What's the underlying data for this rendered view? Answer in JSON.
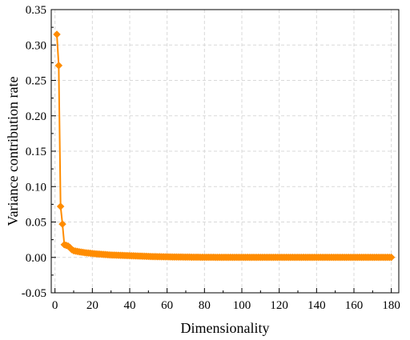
{
  "chart_data": {
    "type": "line",
    "title": "",
    "xlabel": "Dimensionality",
    "ylabel": "Variance contribution rate",
    "xlim": [
      -2,
      184
    ],
    "ylim": [
      -0.05,
      0.35
    ],
    "x_ticks": [
      0,
      20,
      40,
      60,
      80,
      100,
      120,
      140,
      160,
      180
    ],
    "x_tick_labels": [
      "0",
      "20",
      "40",
      "60",
      "80",
      "100",
      "120",
      "140",
      "160",
      "180"
    ],
    "y_ticks": [
      -0.05,
      0,
      0.05,
      0.1,
      0.15,
      0.2,
      0.25,
      0.3,
      0.35
    ],
    "y_tick_labels": [
      "-0.05",
      "0.00",
      "0.05",
      "0.10",
      "0.15",
      "0.20",
      "0.25",
      "0.30",
      "0.35"
    ],
    "grid": true,
    "legend": false,
    "marker": "diamond",
    "color": "#ff8c00",
    "series": [
      {
        "x": [
          1,
          2,
          3,
          4,
          5,
          6,
          7,
          8,
          9,
          10,
          11,
          12,
          13,
          14,
          15,
          16,
          17,
          18,
          19,
          20,
          21,
          22,
          23,
          24,
          25,
          26,
          27,
          28,
          29,
          30,
          31,
          32,
          33,
          34,
          35,
          36,
          37,
          38,
          39,
          40,
          41,
          42,
          43,
          44,
          45,
          46,
          47,
          48,
          49,
          50,
          51,
          52,
          53,
          54,
          55,
          56,
          57,
          58,
          59,
          60,
          61,
          62,
          63,
          64,
          65,
          66,
          67,
          68,
          69,
          70,
          71,
          72,
          73,
          74,
          75,
          76,
          77,
          78,
          79,
          80,
          81,
          82,
          83,
          84,
          85,
          86,
          87,
          88,
          89,
          90,
          91,
          92,
          93,
          94,
          95,
          96,
          97,
          98,
          99,
          100,
          101,
          102,
          103,
          104,
          105,
          106,
          107,
          108,
          109,
          110,
          111,
          112,
          113,
          114,
          115,
          116,
          117,
          118,
          119,
          120,
          121,
          122,
          123,
          124,
          125,
          126,
          127,
          128,
          129,
          130,
          131,
          132,
          133,
          134,
          135,
          136,
          137,
          138,
          139,
          140,
          141,
          142,
          143,
          144,
          145,
          146,
          147,
          148,
          149,
          150,
          151,
          152,
          153,
          154,
          155,
          156,
          157,
          158,
          159,
          160,
          161,
          162,
          163,
          164,
          165,
          166,
          167,
          168,
          169,
          170,
          171,
          172,
          173,
          174,
          175,
          176,
          177,
          178,
          179,
          180
        ],
        "values": [
          0.315,
          0.271,
          0.072,
          0.047,
          0.018,
          0.017,
          0.016,
          0.014,
          0.011,
          0.0095,
          0.0089,
          0.0084,
          0.0079,
          0.0075,
          0.0071,
          0.0067,
          0.0064,
          0.0061,
          0.0058,
          0.0055,
          0.0052,
          0.005,
          0.0048,
          0.0046,
          0.0044,
          0.0042,
          0.004,
          0.0038,
          0.0036,
          0.0034,
          0.0033,
          0.0032,
          0.0031,
          0.003,
          0.0029,
          0.0028,
          0.0027,
          0.0026,
          0.0025,
          0.0024,
          0.0023,
          0.0022,
          0.0021,
          0.002,
          0.0019,
          0.0018,
          0.0017,
          0.0016,
          0.0015,
          0.0014,
          0.0013,
          0.0012,
          0.0011,
          0.0011,
          0.001,
          0.001,
          0.0009,
          0.0009,
          0.0008,
          0.0008,
          0.0007,
          0.0007,
          0.0006,
          0.0006,
          0.0006,
          0.0005,
          0.0005,
          0.0005,
          0.0004,
          0.0004,
          0.0004,
          0.0004,
          0.0003,
          0.0003,
          0.0003,
          0.0003,
          0.0003,
          0.0002,
          0.0002,
          0.0002,
          0.0002,
          0.0002,
          0.0002,
          0.0002,
          0.0002,
          0.0001,
          0.0001,
          0.0001,
          0.0001,
          0.0001,
          0.0001,
          0.0001,
          0.0001,
          0.0001,
          0.0001,
          0.0001,
          0.0001,
          0.0001,
          0.0001,
          0.0001,
          0.0001,
          0.0001,
          0.0001,
          0.0001,
          0.0001,
          0.0001,
          0.0001,
          0.0001,
          0.0001,
          0.0001,
          0.0001,
          0.0001,
          0.0001,
          0.0001,
          0.0001,
          0.0001,
          0.0001,
          0.0001,
          0.0001,
          0.0001,
          0.0001,
          0.0001,
          0.0001,
          0.0001,
          0.0001,
          0.0001,
          0.0001,
          0.0001,
          0.0001,
          0.0001,
          0.0001,
          0.0001,
          0.0001,
          0.0001,
          0.0001,
          0.0001,
          0.0001,
          0.0001,
          0.0001,
          0.0001,
          0.0001,
          0.0001,
          0.0001,
          0.0001,
          0.0001,
          0.0001,
          0.0001,
          0.0001,
          0.0001,
          0.0001,
          0.0001,
          0.0001,
          0.0001,
          0.0001,
          0.0001,
          0.0001,
          0.0001,
          0.0001,
          0.0001,
          0.0001,
          0.0001,
          0.0001,
          0.0001,
          0.0001,
          0.0001,
          0.0001,
          0.0001,
          0.0001,
          0.0001,
          0.0001,
          0.0001,
          0.0001,
          0.0001,
          0.0001,
          0.0001,
          0.0001,
          0.0001,
          0.0001,
          0.0001,
          0.0001
        ]
      }
    ]
  }
}
